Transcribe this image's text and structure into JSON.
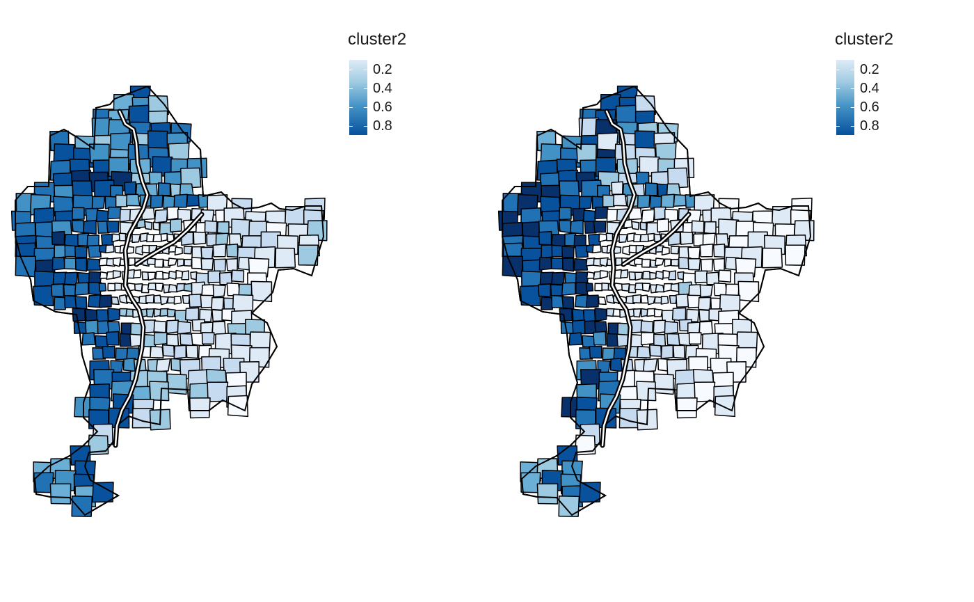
{
  "legend": {
    "title": "cluster2",
    "ticks": [
      "0.2",
      "0.4",
      "0.6",
      "0.8"
    ],
    "palette": [
      "#f7fbff",
      "#deebf7",
      "#c6dbef",
      "#9ecae1",
      "#6baed6",
      "#4292c6",
      "#2171b5",
      "#08519c",
      "#08306b"
    ]
  },
  "maps": [
    {
      "name": "left-map",
      "legend_title": "cluster2"
    },
    {
      "name": "right-map",
      "legend_title": "cluster2"
    }
  ]
}
